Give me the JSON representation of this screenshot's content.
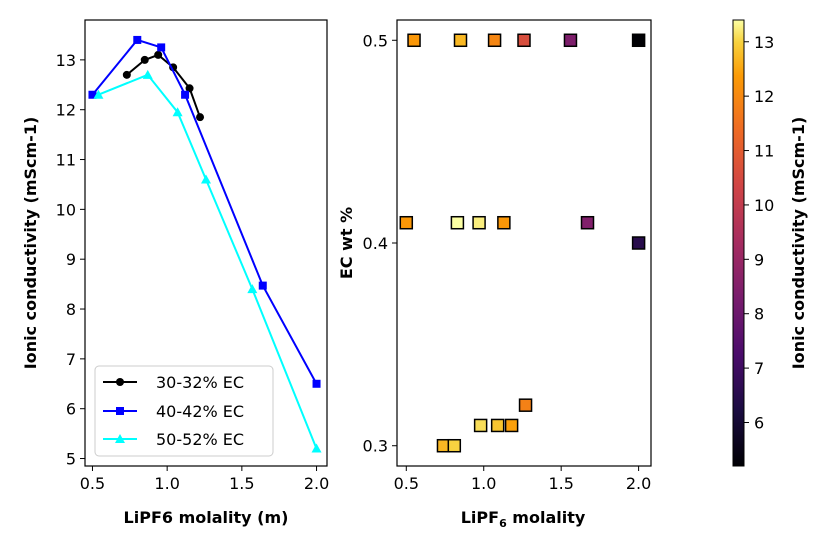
{
  "chart_data": [
    {
      "type": "line",
      "xlabel": "LiPF6 molality (m)",
      "ylabel": "Ionic conductivity (mScm-1)",
      "xlim": [
        0.45,
        2.07
      ],
      "ylim": [
        4.85,
        13.8
      ],
      "xticks": [
        0.5,
        1.0,
        1.5,
        2.0
      ],
      "xtick_labels": [
        "0.5",
        "1.0",
        "1.5",
        "2.0"
      ],
      "yticks": [
        5,
        6,
        7,
        8,
        9,
        10,
        11,
        12,
        13
      ],
      "ytick_labels": [
        "5",
        "6",
        "7",
        "8",
        "9",
        "10",
        "11",
        "12",
        "13"
      ],
      "legend_position": "lower-left",
      "series": [
        {
          "name": "30-32% EC",
          "color": "#000000",
          "marker": "circle",
          "x": [
            0.73,
            0.85,
            0.94,
            1.04,
            1.15,
            1.22
          ],
          "y": [
            12.7,
            13.0,
            13.1,
            12.85,
            12.43,
            11.85
          ]
        },
        {
          "name": "40-42% EC",
          "color": "#0000ff",
          "marker": "square",
          "x": [
            0.5,
            0.8,
            0.96,
            1.12,
            1.64,
            2.0
          ],
          "y": [
            12.3,
            13.4,
            13.25,
            12.3,
            8.47,
            6.5
          ]
        },
        {
          "name": "50-52% EC",
          "color": "#00ffff",
          "marker": "triangle",
          "x": [
            0.54,
            0.87,
            1.07,
            1.26,
            1.57,
            2.0
          ],
          "y": [
            12.3,
            12.7,
            11.95,
            10.6,
            8.4,
            5.2
          ]
        }
      ]
    },
    {
      "type": "scatter",
      "xlabel_main": "LiPF",
      "xlabel_sub": "6",
      "xlabel_rest": " molality",
      "ylabel": "EC wt %",
      "xlim": [
        0.44,
        2.08
      ],
      "ylim": [
        0.29,
        0.51
      ],
      "xticks": [
        0.5,
        1.0,
        1.5,
        2.0
      ],
      "xtick_labels": [
        "0.5",
        "1.0",
        "1.5",
        "2.0"
      ],
      "yticks": [
        0.3,
        0.4,
        0.5
      ],
      "ytick_labels": [
        "0.3",
        "0.4",
        "0.5"
      ],
      "points": [
        {
          "x": 0.55,
          "y": 0.5,
          "c": 12.3
        },
        {
          "x": 0.85,
          "y": 0.5,
          "c": 12.7
        },
        {
          "x": 1.07,
          "y": 0.5,
          "c": 11.95
        },
        {
          "x": 1.26,
          "y": 0.5,
          "c": 10.6
        },
        {
          "x": 1.56,
          "y": 0.5,
          "c": 8.4
        },
        {
          "x": 2.0,
          "y": 0.5,
          "c": 5.2
        },
        {
          "x": 0.5,
          "y": 0.41,
          "c": 12.3
        },
        {
          "x": 0.83,
          "y": 0.41,
          "c": 13.4
        },
        {
          "x": 0.97,
          "y": 0.41,
          "c": 13.25
        },
        {
          "x": 1.13,
          "y": 0.41,
          "c": 12.3
        },
        {
          "x": 1.67,
          "y": 0.41,
          "c": 8.47
        },
        {
          "x": 2.0,
          "y": 0.4,
          "c": 6.5
        },
        {
          "x": 0.74,
          "y": 0.3,
          "c": 12.7
        },
        {
          "x": 0.81,
          "y": 0.3,
          "c": 13.0
        },
        {
          "x": 0.98,
          "y": 0.31,
          "c": 13.1
        },
        {
          "x": 1.09,
          "y": 0.31,
          "c": 12.85
        },
        {
          "x": 1.18,
          "y": 0.31,
          "c": 12.43
        },
        {
          "x": 1.27,
          "y": 0.32,
          "c": 11.85
        }
      ]
    },
    {
      "type": "colorbar",
      "label": "Ionic conductivity (mScm-1)",
      "colormap": "inferno",
      "range": [
        5.2,
        13.4
      ],
      "ticks": [
        6,
        7,
        8,
        9,
        10,
        11,
        12,
        13
      ],
      "tick_labels": [
        "6",
        "7",
        "8",
        "9",
        "10",
        "11",
        "12",
        "13"
      ]
    }
  ]
}
